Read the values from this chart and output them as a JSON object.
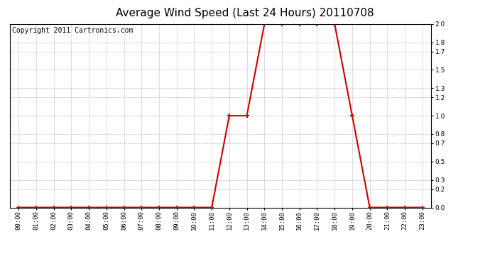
{
  "title": "Average Wind Speed (Last 24 Hours) 20110708",
  "copyright": "Copyright 2011 Cartronics.com",
  "x_labels": [
    "00:00",
    "01:00",
    "02:00",
    "03:00",
    "04:00",
    "05:00",
    "06:00",
    "07:00",
    "08:00",
    "09:00",
    "10:00",
    "11:00",
    "12:00",
    "13:00",
    "14:00",
    "15:00",
    "16:00",
    "17:00",
    "18:00",
    "19:00",
    "20:00",
    "21:00",
    "22:00",
    "23:00"
  ],
  "x_values": [
    0,
    1,
    2,
    3,
    4,
    5,
    6,
    7,
    8,
    9,
    10,
    11,
    12,
    13,
    14,
    15,
    16,
    17,
    18,
    19,
    20,
    21,
    22,
    23
  ],
  "y_values": [
    0,
    0,
    0,
    0,
    0,
    0,
    0,
    0,
    0,
    0,
    0,
    0,
    1,
    1,
    2,
    2,
    2,
    2,
    2,
    1,
    0,
    0,
    0,
    0
  ],
  "line_color": "#cc0000",
  "marker": "+",
  "marker_size": 5,
  "marker_linewidth": 1.5,
  "linewidth": 1.5,
  "ylim": [
    0,
    2.0
  ],
  "yticks": [
    0.0,
    0.2,
    0.3,
    0.5,
    0.7,
    0.8,
    1.0,
    1.2,
    1.3,
    1.5,
    1.7,
    1.8,
    2.0
  ],
  "grid_color": "#bbbbbb",
  "grid_style": "--",
  "grid_linewidth": 0.5,
  "bg_color": "#ffffff",
  "title_fontsize": 11,
  "tick_fontsize": 6.5,
  "copyright_fontsize": 7
}
